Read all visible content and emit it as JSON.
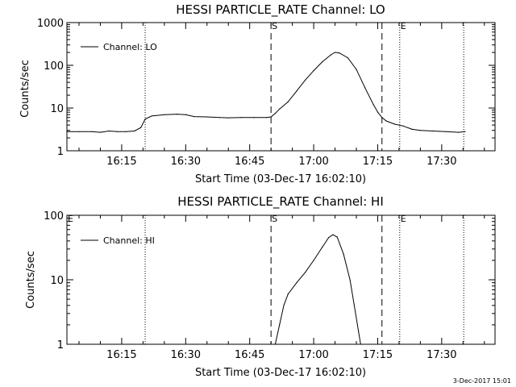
{
  "timestamp": "3-Dec-2017 15:01",
  "chart_data": [
    {
      "type": "line",
      "title": "HESSI PARTICLE_RATE Channel: LO",
      "xlabel": "Start Time (03-Dec-17 16:02:10)",
      "ylabel": "Counts/sec",
      "yscale": "log",
      "ylim": [
        1,
        1000
      ],
      "xlim": [
        "16:02:10",
        "17:42:30"
      ],
      "x_ticks": [
        "16:15",
        "16:30",
        "16:45",
        "17:00",
        "17:15",
        "17:30"
      ],
      "y_ticks": [
        "1",
        "10",
        "100",
        "1000"
      ],
      "legend": {
        "label": "Channel: LO",
        "placement": "top-left"
      },
      "markers": [
        {
          "label": "S",
          "time": "16:50:00",
          "style": "dashed"
        },
        {
          "label": "",
          "time": "17:16:00",
          "style": "dashed"
        },
        {
          "label": "",
          "time": "16:20:30",
          "style": "dotted"
        },
        {
          "label": "E",
          "time": "17:20:10",
          "style": "dotted"
        },
        {
          "label": "",
          "time": "17:35:10",
          "style": "dotted"
        }
      ],
      "series": [
        {
          "name": "Channel: LO",
          "points": [
            [
              "16:02:10",
              2.8
            ],
            [
              "16:05:00",
              2.8
            ],
            [
              "16:08:00",
              2.8
            ],
            [
              "16:10:00",
              2.7
            ],
            [
              "16:12:00",
              2.9
            ],
            [
              "16:14:00",
              2.8
            ],
            [
              "16:16:00",
              2.8
            ],
            [
              "16:18:00",
              2.9
            ],
            [
              "16:19:30",
              3.5
            ],
            [
              "16:20:30",
              5.5
            ],
            [
              "16:22:00",
              6.5
            ],
            [
              "16:25:00",
              7.0
            ],
            [
              "16:28:00",
              7.2
            ],
            [
              "16:30:00",
              7.0
            ],
            [
              "16:32:00",
              6.3
            ],
            [
              "16:35:00",
              6.2
            ],
            [
              "16:38:00",
              6.0
            ],
            [
              "16:40:00",
              5.9
            ],
            [
              "16:43:00",
              6.0
            ],
            [
              "16:46:00",
              6.0
            ],
            [
              "16:49:00",
              6.0
            ],
            [
              "16:50:00",
              6.2
            ],
            [
              "16:51:00",
              7.5
            ],
            [
              "16:52:00",
              9.5
            ],
            [
              "16:54:00",
              14
            ],
            [
              "16:56:00",
              25
            ],
            [
              "16:58:00",
              45
            ],
            [
              "17:00:00",
              75
            ],
            [
              "17:02:00",
              120
            ],
            [
              "17:04:00",
              175
            ],
            [
              "17:05:00",
              200
            ],
            [
              "17:06:00",
              195
            ],
            [
              "17:08:00",
              150
            ],
            [
              "17:10:00",
              80
            ],
            [
              "17:12:00",
              30
            ],
            [
              "17:14:00",
              12
            ],
            [
              "17:15:00",
              8
            ],
            [
              "17:16:00",
              6
            ],
            [
              "17:17:00",
              5
            ],
            [
              "17:19:00",
              4.2
            ],
            [
              "17:21:00",
              3.8
            ],
            [
              "17:23:00",
              3.2
            ],
            [
              "17:25:00",
              3.0
            ],
            [
              "17:28:00",
              2.9
            ],
            [
              "17:31:00",
              2.8
            ],
            [
              "17:34:00",
              2.7
            ],
            [
              "17:35:30",
              2.8
            ]
          ]
        }
      ]
    },
    {
      "type": "line",
      "title": "HESSI PARTICLE_RATE Channel: HI",
      "xlabel": "Start Time (03-Dec-17 16:02:10)",
      "ylabel": "Counts/sec",
      "yscale": "log",
      "ylim": [
        1,
        100
      ],
      "xlim": [
        "16:02:10",
        "17:42:30"
      ],
      "x_ticks": [
        "16:15",
        "16:30",
        "16:45",
        "17:00",
        "17:15",
        "17:30"
      ],
      "y_ticks": [
        "1",
        "10",
        "100"
      ],
      "legend": {
        "label": "Channel: HI",
        "placement": "top-left"
      },
      "markers": [
        {
          "label": "E",
          "time": "16:02:10",
          "style": "none"
        },
        {
          "label": "S",
          "time": "16:50:00",
          "style": "dashed"
        },
        {
          "label": "",
          "time": "17:16:00",
          "style": "dashed"
        },
        {
          "label": "",
          "time": "16:20:30",
          "style": "dotted"
        },
        {
          "label": "E",
          "time": "17:20:10",
          "style": "dotted"
        },
        {
          "label": "",
          "time": "17:35:10",
          "style": "dotted"
        }
      ],
      "series": [
        {
          "name": "Channel: HI",
          "points": [
            [
              "16:51:00",
              1.0
            ],
            [
              "16:52:00",
              2.0
            ],
            [
              "16:53:00",
              4.0
            ],
            [
              "16:54:00",
              6.0
            ],
            [
              "16:56:00",
              9.0
            ],
            [
              "16:58:00",
              13
            ],
            [
              "17:00:00",
              20
            ],
            [
              "17:02:00",
              32
            ],
            [
              "17:03:30",
              45
            ],
            [
              "17:04:30",
              50
            ],
            [
              "17:05:30",
              46
            ],
            [
              "17:07:00",
              25
            ],
            [
              "17:08:30",
              10
            ],
            [
              "17:09:30",
              4
            ],
            [
              "17:10:30",
              1.6
            ],
            [
              "17:11:00",
              1.0
            ]
          ]
        }
      ]
    }
  ]
}
